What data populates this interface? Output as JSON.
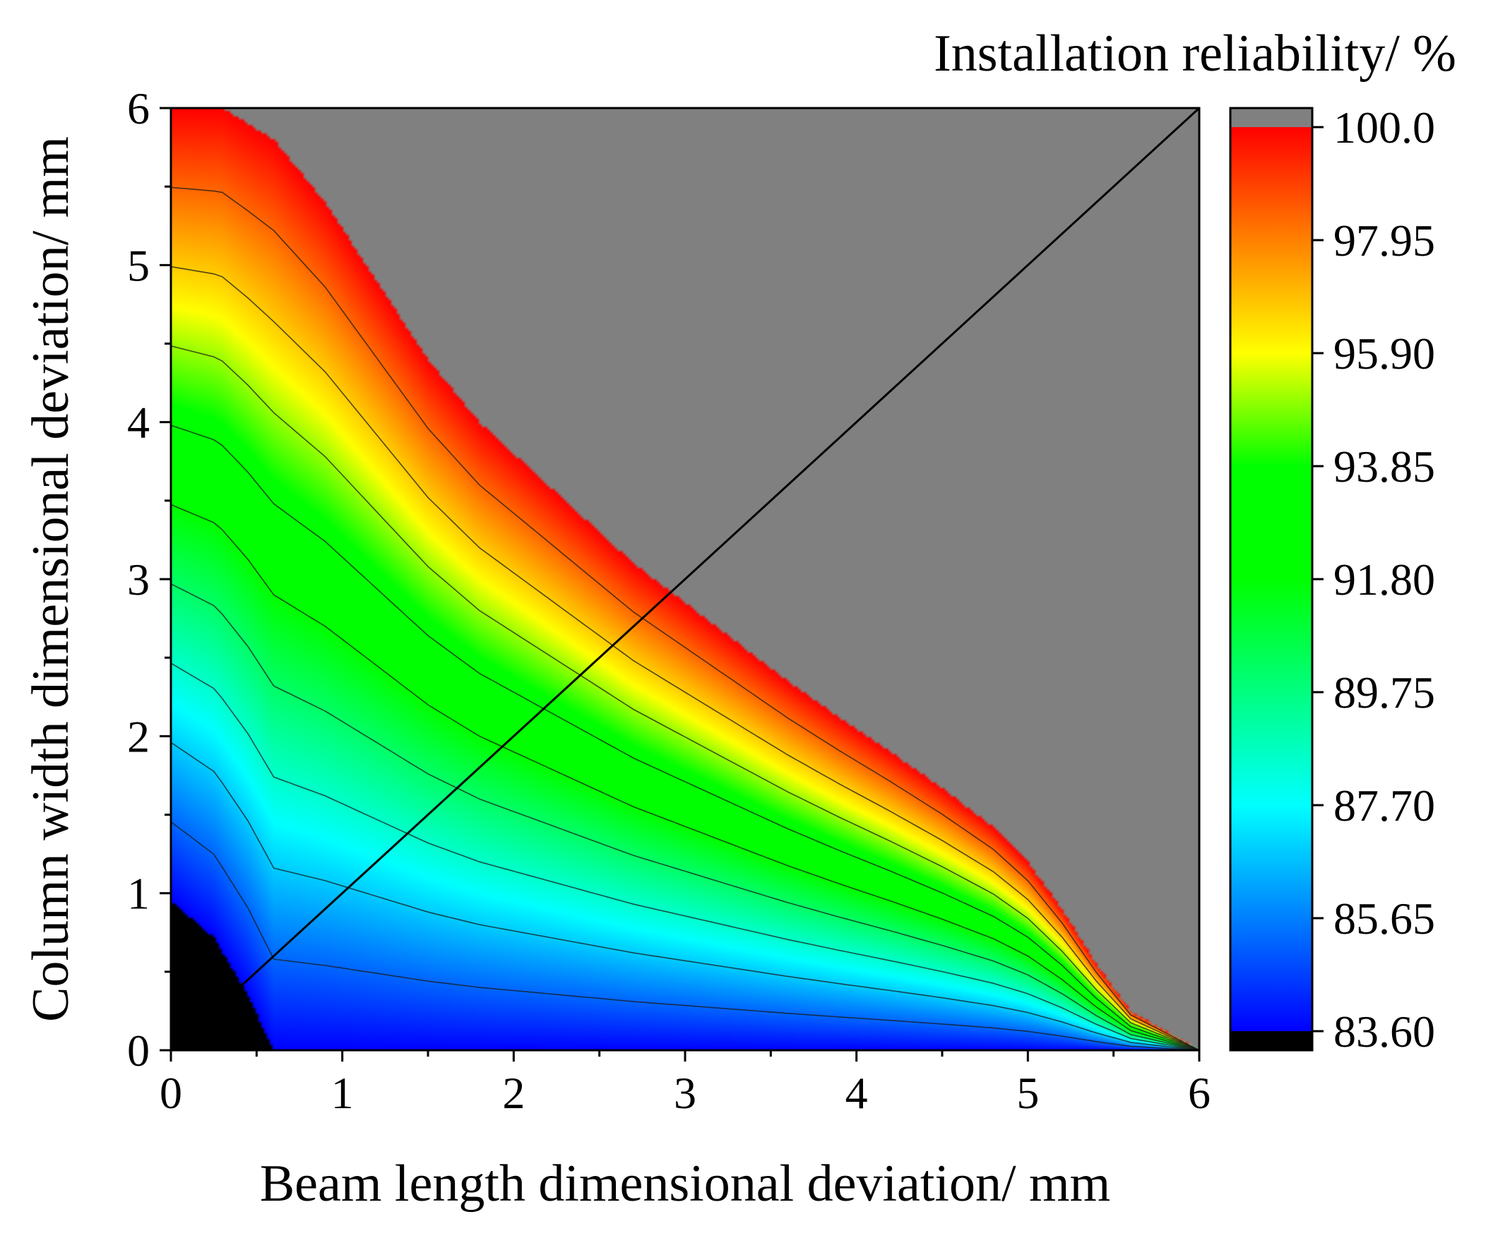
{
  "chart_data": {
    "type": "contour",
    "title": "",
    "colorbar_label": "Installation reliability/ %",
    "xlabel": "Beam length dimensional deviation/ mm",
    "ylabel": "Column width dimensional deviation/ mm",
    "xlim": [
      0,
      6
    ],
    "ylim": [
      0,
      6
    ],
    "x_ticks": [
      "0",
      "1",
      "2",
      "3",
      "4",
      "5",
      "6"
    ],
    "y_ticks": [
      "0",
      "1",
      "2",
      "3",
      "4",
      "5",
      "6"
    ],
    "colorbar_range": [
      83.6,
      100.0
    ],
    "colorbar_ticks": [
      "100.0",
      "97.95",
      "95.90",
      "93.85",
      "91.80",
      "89.75",
      "87.70",
      "85.65",
      "83.60"
    ],
    "below_range_color": "#000000",
    "above_range_color": "#808080",
    "colormap_stops": [
      {
        "value": 83.6,
        "color": "#0000ff"
      },
      {
        "value": 87.7,
        "color": "#00ffff"
      },
      {
        "value": 91.8,
        "color": "#00ff00"
      },
      {
        "value": 93.85,
        "color": "#00ff00"
      },
      {
        "value": 95.9,
        "color": "#ffff00"
      },
      {
        "value": 97.95,
        "color": "#ff8000"
      },
      {
        "value": 100.0,
        "color": "#ff0000"
      }
    ],
    "boundary_100_percent": [
      [
        0.3,
        6.0
      ],
      [
        0.6,
        5.8
      ],
      [
        0.9,
        5.4
      ],
      [
        1.2,
        4.9
      ],
      [
        1.5,
        4.4
      ],
      [
        1.8,
        4.0
      ],
      [
        2.1,
        3.7
      ],
      [
        2.4,
        3.4
      ],
      [
        2.7,
        3.1
      ],
      [
        3.0,
        2.85
      ],
      [
        3.3,
        2.6
      ],
      [
        3.6,
        2.35
      ],
      [
        3.9,
        2.12
      ],
      [
        4.2,
        1.9
      ],
      [
        4.5,
        1.67
      ],
      [
        4.8,
        1.42
      ],
      [
        5.0,
        1.2
      ],
      [
        5.2,
        0.9
      ],
      [
        5.4,
        0.55
      ],
      [
        5.6,
        0.25
      ],
      [
        6.0,
        0.0
      ]
    ],
    "boundary_83_6_percent": [
      [
        0.0,
        0.95
      ],
      [
        0.25,
        0.72
      ],
      [
        0.45,
        0.35
      ],
      [
        0.6,
        0.0
      ]
    ],
    "reference_line": {
      "from": [
        0.4,
        0.4
      ],
      "to": [
        6.0,
        6.0
      ]
    }
  }
}
